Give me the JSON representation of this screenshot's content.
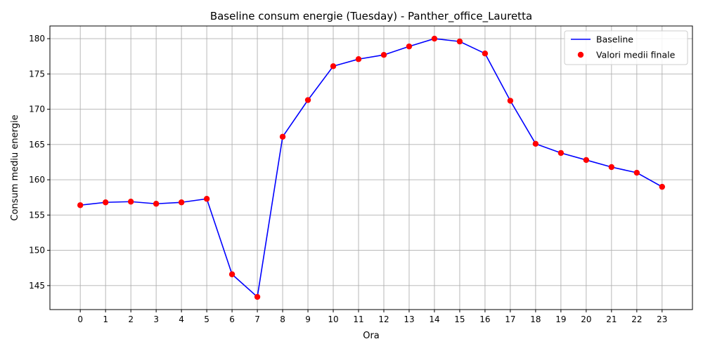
{
  "chart_data": {
    "type": "line",
    "title": "Baseline consum energie (Tuesday) - Panther_office_Lauretta",
    "xlabel": "Ora",
    "ylabel": "Consum mediu energie",
    "x": [
      0,
      1,
      2,
      3,
      4,
      5,
      6,
      7,
      8,
      9,
      10,
      11,
      12,
      13,
      14,
      15,
      16,
      17,
      18,
      19,
      20,
      21,
      22,
      23
    ],
    "x_tick_labels": [
      "0",
      "1",
      "2",
      "3",
      "4",
      "5",
      "6",
      "7",
      "8",
      "9",
      "10",
      "11",
      "12",
      "13",
      "14",
      "15",
      "16",
      "17",
      "18",
      "19",
      "20",
      "21",
      "22",
      "23"
    ],
    "y_ticks": [
      145,
      150,
      155,
      160,
      165,
      170,
      175,
      180
    ],
    "xlim": [
      -1.2,
      24.2
    ],
    "ylim": [
      141.6,
      181.8
    ],
    "grid": true,
    "legend_position": "top-right",
    "series": [
      {
        "name": "Baseline",
        "kind": "line",
        "color": "#0000ff",
        "values": [
          156.4,
          156.8,
          156.9,
          156.6,
          156.8,
          157.3,
          146.6,
          143.4,
          166.1,
          171.3,
          176.1,
          177.1,
          177.7,
          178.9,
          180.0,
          179.6,
          177.9,
          171.2,
          165.1,
          163.8,
          162.8,
          161.8,
          161.0,
          159.0
        ]
      },
      {
        "name": "Valori medii finale",
        "kind": "scatter",
        "color": "#ff0000",
        "values": [
          156.4,
          156.8,
          156.9,
          156.6,
          156.8,
          157.3,
          146.6,
          143.4,
          166.1,
          171.3,
          176.1,
          177.1,
          177.7,
          178.9,
          180.0,
          179.6,
          177.9,
          171.2,
          165.1,
          163.8,
          162.8,
          161.8,
          161.0,
          159.0
        ]
      }
    ]
  }
}
